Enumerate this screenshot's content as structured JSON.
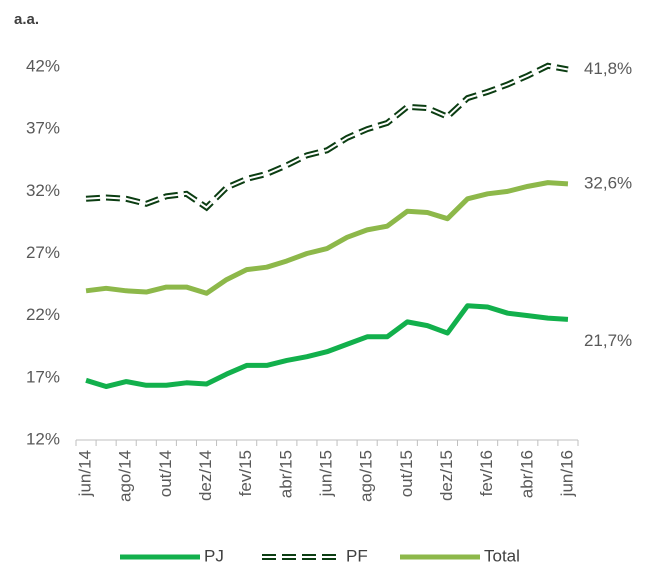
{
  "chart_data": {
    "type": "line",
    "y_axis_label": "a.a.",
    "categories": [
      "jun/14",
      null,
      "ago/14",
      null,
      "out/14",
      null,
      "dez/14",
      null,
      "fev/15",
      null,
      "abr/15",
      null,
      "jun/15",
      null,
      "ago/15",
      null,
      "out/15",
      null,
      "dez/15",
      null,
      "fev/16",
      null,
      "abr/16",
      null,
      "jun/16"
    ],
    "series": [
      {
        "name": "PJ",
        "color": "#12b04c",
        "style": "solid",
        "values": [
          16.8,
          16.3,
          16.7,
          16.4,
          16.4,
          16.6,
          16.5,
          17.3,
          18.0,
          18.0,
          18.4,
          18.7,
          19.1,
          19.7,
          20.3,
          20.3,
          21.5,
          21.2,
          20.6,
          22.8,
          22.7,
          22.2,
          22.0,
          21.8,
          21.7
        ],
        "value_labels": [
          null,
          null,
          null,
          null,
          null,
          null,
          null,
          null,
          null,
          null,
          null,
          null,
          null,
          null,
          null,
          null,
          null,
          null,
          null,
          null,
          null,
          null,
          null,
          null,
          "21,7%"
        ]
      },
      {
        "name": "PF",
        "color": "#0b3d12",
        "style": "dashed",
        "values": [
          31.4,
          31.5,
          31.4,
          31.0,
          31.6,
          31.8,
          30.7,
          32.3,
          33.0,
          33.4,
          34.1,
          34.9,
          35.3,
          36.3,
          37.0,
          37.5,
          38.8,
          38.7,
          38.0,
          39.5,
          40.0,
          40.6,
          41.3,
          42.1,
          41.8
        ],
        "value_labels": [
          null,
          null,
          null,
          null,
          null,
          null,
          null,
          null,
          null,
          null,
          null,
          null,
          null,
          null,
          null,
          null,
          null,
          null,
          null,
          null,
          null,
          null,
          null,
          null,
          "41,8%"
        ]
      },
      {
        "name": "Total",
        "color": "#8db84a",
        "style": "solid",
        "values": [
          24.0,
          24.2,
          24.0,
          23.9,
          24.3,
          24.3,
          23.8,
          24.9,
          25.7,
          25.9,
          26.4,
          27.0,
          27.4,
          28.3,
          28.9,
          29.2,
          30.4,
          30.3,
          29.8,
          31.4,
          31.8,
          32.0,
          32.4,
          32.7,
          32.6
        ],
        "value_labels": [
          null,
          null,
          null,
          null,
          null,
          null,
          null,
          null,
          null,
          null,
          null,
          null,
          null,
          null,
          null,
          null,
          null,
          null,
          null,
          null,
          null,
          null,
          null,
          null,
          "32,6%"
        ]
      }
    ],
    "ylim": [
      12,
      42
    ],
    "yticks": [
      {
        "value": 12,
        "label": "12%"
      },
      {
        "value": 17,
        "label": "17%"
      },
      {
        "value": 22,
        "label": "22%"
      },
      {
        "value": 27,
        "label": "27%"
      },
      {
        "value": 32,
        "label": "32%"
      },
      {
        "value": 37,
        "label": "37%"
      },
      {
        "value": 42,
        "label": "42%"
      }
    ],
    "grid": false,
    "legend": "bottom"
  }
}
